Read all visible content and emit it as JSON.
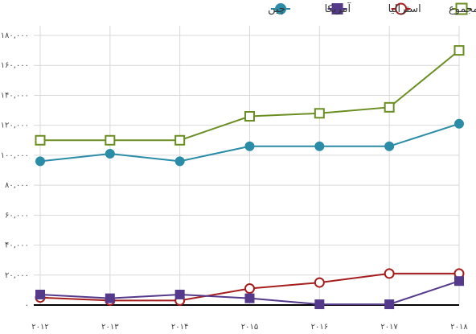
{
  "chart_data": {
    "type": "line",
    "title": "",
    "xlabel": "",
    "ylabel": "",
    "categories": [
      "۲۰۱۲",
      "۲۰۱۳",
      "۲۰۱۴",
      "۲۰۱۵",
      "۲۰۱۶",
      "۲۰۱۷",
      "۲۰۱۸"
    ],
    "ylim": [
      0,
      180000
    ],
    "yticks": [
      0,
      20000,
      40000,
      60000,
      80000,
      100000,
      120000,
      140000,
      160000,
      180000
    ],
    "ytick_labels": [
      "۰",
      "۲۰,۰۰۰",
      "۴۰,۰۰۰",
      "۶۰,۰۰۰",
      "۸۰,۰۰۰",
      "۱۰۰,۰۰۰",
      "۱۲۰,۰۰۰",
      "۱۴۰,۰۰۰",
      "۱۶۰,۰۰۰",
      "۱۸۰,۰۰۰"
    ],
    "grid": true,
    "legend_position": "top-right",
    "series": [
      {
        "name": "مجموع",
        "color": "#6b8e23",
        "marker": "square-open",
        "values": [
          110000,
          110000,
          110000,
          126000,
          128000,
          132000,
          170000
        ]
      },
      {
        "name": "استرالیا",
        "color": "#a51d1d",
        "marker": "circle-open",
        "values": [
          5000,
          3000,
          3000,
          11000,
          15000,
          21000,
          21000
        ]
      },
      {
        "name": "آمریکا",
        "color": "#553a8c",
        "marker": "square-filled",
        "values": [
          7000,
          4500,
          7000,
          4500,
          500,
          500,
          16000
        ]
      },
      {
        "name": "چین",
        "color": "#2a8ca6",
        "marker": "circle-filled",
        "values": [
          96000,
          101000,
          96000,
          106000,
          106000,
          106000,
          121000
        ]
      }
    ]
  }
}
